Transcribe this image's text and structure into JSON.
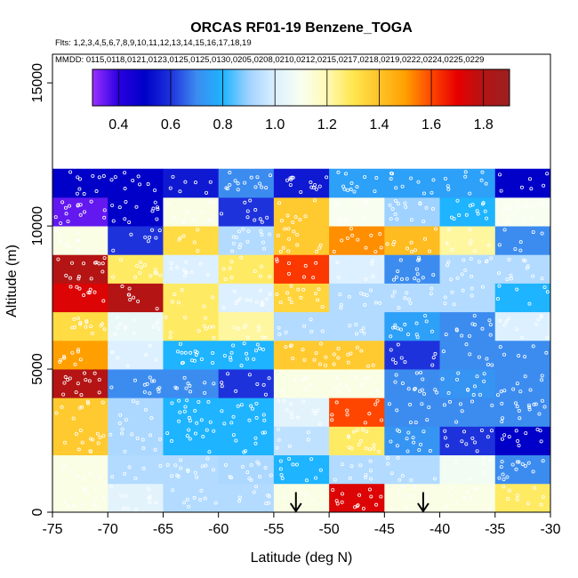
{
  "chart_data": {
    "type": "heatmap",
    "title": "ORCAS RF01-19 Benzene_TOGA",
    "flights_label": "Flts: 1,2,3,4,5,6,7,8,9,10,11,12,13,14,15,16,17,18,19",
    "dates_label": "MMDD: 0115,0118,0121,0123,0125,0125,0130,0205,0208,0210,0212,0215,0217,0218,0219,0222,0224,0225,0229",
    "xlabel": "Latitude (deg N)",
    "ylabel": "Altitude (m)",
    "xlim": [
      -75,
      -30
    ],
    "ylim": [
      0,
      16000
    ],
    "x_ticks": [
      -75,
      -70,
      -65,
      -60,
      -55,
      -50,
      -45,
      -40,
      -35,
      -30
    ],
    "y_ticks": [
      0,
      5000,
      10000,
      15000
    ],
    "x_bin_edges": [
      -75,
      -70,
      -65,
      -60,
      -55,
      -50,
      -45,
      -40,
      -35,
      -30
    ],
    "y_bin_edges": [
      0,
      1000,
      2000,
      3000,
      4000,
      5000,
      6000,
      7000,
      8000,
      9000,
      10000,
      11000,
      12000
    ],
    "colorbar": {
      "range": [
        0.3,
        1.9
      ],
      "ticks": [
        0.4,
        0.6,
        0.8,
        1.0,
        1.2,
        1.4,
        1.6,
        1.8
      ],
      "tick_labels": [
        "0.4",
        "0.6",
        "0.8",
        "1.0",
        "1.2",
        "1.4",
        "1.6",
        "1.8"
      ],
      "stops": [
        {
          "v": 0.3,
          "c": "#9b30ff"
        },
        {
          "v": 0.4,
          "c": "#2a00e0"
        },
        {
          "v": 0.5,
          "c": "#0000c8"
        },
        {
          "v": 0.6,
          "c": "#1e32dc"
        },
        {
          "v": 0.7,
          "c": "#3c8cf0"
        },
        {
          "v": 0.8,
          "c": "#1eb4ff"
        },
        {
          "v": 0.9,
          "c": "#a0d2ff"
        },
        {
          "v": 1.0,
          "c": "#dcf0ff"
        },
        {
          "v": 1.1,
          "c": "#f8fff0"
        },
        {
          "v": 1.2,
          "c": "#fffab4"
        },
        {
          "v": 1.3,
          "c": "#ffe650"
        },
        {
          "v": 1.4,
          "c": "#ffc328"
        },
        {
          "v": 1.5,
          "c": "#ffa000"
        },
        {
          "v": 1.6,
          "c": "#ff4600"
        },
        {
          "v": 1.7,
          "c": "#e60000"
        },
        {
          "v": 1.8,
          "c": "#b41414"
        },
        {
          "v": 1.9,
          "c": "#9b2020"
        }
      ]
    },
    "cells": [
      {
        "lat": -75,
        "alt": 0,
        "v": 1.12
      },
      {
        "lat": -70,
        "alt": 0,
        "v": 1.02
      },
      {
        "lat": -65,
        "alt": 0,
        "v": 0.93
      },
      {
        "lat": -60,
        "alt": 0,
        "v": 0.93
      },
      {
        "lat": -55,
        "alt": 0,
        "v": 1.12
      },
      {
        "lat": -50,
        "alt": 0,
        "v": 1.72
      },
      {
        "lat": -45,
        "alt": 0,
        "v": 1.12
      },
      {
        "lat": -40,
        "alt": 0,
        "v": 1.12
      },
      {
        "lat": -35,
        "alt": 0,
        "v": 1.28
      },
      {
        "lat": -75,
        "alt": 1000,
        "v": 1.12
      },
      {
        "lat": -70,
        "alt": 1000,
        "v": 0.93
      },
      {
        "lat": -65,
        "alt": 1000,
        "v": 0.93
      },
      {
        "lat": -60,
        "alt": 1000,
        "v": 0.92
      },
      {
        "lat": -55,
        "alt": 1000,
        "v": 0.8
      },
      {
        "lat": -50,
        "alt": 1000,
        "v": 0.93
      },
      {
        "lat": -45,
        "alt": 1000,
        "v": 0.93
      },
      {
        "lat": -40,
        "alt": 1000,
        "v": 1.08
      },
      {
        "lat": -35,
        "alt": 1000,
        "v": 0.7
      },
      {
        "lat": -75,
        "alt": 2000,
        "v": 1.38
      },
      {
        "lat": -70,
        "alt": 2000,
        "v": 0.92
      },
      {
        "lat": -65,
        "alt": 2000,
        "v": 0.8
      },
      {
        "lat": -60,
        "alt": 2000,
        "v": 0.8
      },
      {
        "lat": -55,
        "alt": 2000,
        "v": 0.95
      },
      {
        "lat": -50,
        "alt": 2000,
        "v": 1.28
      },
      {
        "lat": -45,
        "alt": 2000,
        "v": 0.72
      },
      {
        "lat": -40,
        "alt": 2000,
        "v": 0.6
      },
      {
        "lat": -35,
        "alt": 2000,
        "v": 0.5
      },
      {
        "lat": -75,
        "alt": 3000,
        "v": 1.38
      },
      {
        "lat": -70,
        "alt": 3000,
        "v": 0.92
      },
      {
        "lat": -65,
        "alt": 3000,
        "v": 0.8
      },
      {
        "lat": -60,
        "alt": 3000,
        "v": 0.8
      },
      {
        "lat": -55,
        "alt": 3000,
        "v": 1.02
      },
      {
        "lat": -50,
        "alt": 3000,
        "v": 1.6
      },
      {
        "lat": -45,
        "alt": 3000,
        "v": 0.7
      },
      {
        "lat": -40,
        "alt": 3000,
        "v": 0.7
      },
      {
        "lat": -35,
        "alt": 3000,
        "v": 0.7
      },
      {
        "lat": -75,
        "alt": 4000,
        "v": 1.8
      },
      {
        "lat": -70,
        "alt": 4000,
        "v": 0.7
      },
      {
        "lat": -65,
        "alt": 4000,
        "v": 0.7
      },
      {
        "lat": -60,
        "alt": 4000,
        "v": 0.6
      },
      {
        "lat": -55,
        "alt": 4000,
        "v": 1.12
      },
      {
        "lat": -50,
        "alt": 4000,
        "v": 1.12
      },
      {
        "lat": -45,
        "alt": 4000,
        "v": 0.7
      },
      {
        "lat": -40,
        "alt": 4000,
        "v": 0.72
      },
      {
        "lat": -35,
        "alt": 4000,
        "v": 0.7
      },
      {
        "lat": -75,
        "alt": 5000,
        "v": 1.5
      },
      {
        "lat": -70,
        "alt": 5000,
        "v": 1.0
      },
      {
        "lat": -65,
        "alt": 5000,
        "v": 0.8
      },
      {
        "lat": -60,
        "alt": 5000,
        "v": 0.8
      },
      {
        "lat": -55,
        "alt": 5000,
        "v": 1.38
      },
      {
        "lat": -50,
        "alt": 5000,
        "v": 1.38
      },
      {
        "lat": -45,
        "alt": 5000,
        "v": 0.6
      },
      {
        "lat": -40,
        "alt": 5000,
        "v": 0.7
      },
      {
        "lat": -35,
        "alt": 5000,
        "v": 0.7
      },
      {
        "lat": -75,
        "alt": 6000,
        "v": 1.33
      },
      {
        "lat": -70,
        "alt": 6000,
        "v": 1.05
      },
      {
        "lat": -65,
        "alt": 6000,
        "v": 1.28
      },
      {
        "lat": -60,
        "alt": 6000,
        "v": 1.22
      },
      {
        "lat": -55,
        "alt": 6000,
        "v": 0.93
      },
      {
        "lat": -50,
        "alt": 6000,
        "v": 0.93
      },
      {
        "lat": -45,
        "alt": 6000,
        "v": 0.75
      },
      {
        "lat": -40,
        "alt": 6000,
        "v": 0.7
      },
      {
        "lat": -35,
        "alt": 6000,
        "v": 1.0
      },
      {
        "lat": -75,
        "alt": 7000,
        "v": 1.72
      },
      {
        "lat": -70,
        "alt": 7000,
        "v": 1.8
      },
      {
        "lat": -65,
        "alt": 7000,
        "v": 1.28
      },
      {
        "lat": -60,
        "alt": 7000,
        "v": 1.0
      },
      {
        "lat": -55,
        "alt": 7000,
        "v": 1.35
      },
      {
        "lat": -50,
        "alt": 7000,
        "v": 0.93
      },
      {
        "lat": -45,
        "alt": 7000,
        "v": 0.93
      },
      {
        "lat": -40,
        "alt": 7000,
        "v": 0.93
      },
      {
        "lat": -35,
        "alt": 7000,
        "v": 0.8
      },
      {
        "lat": -75,
        "alt": 8000,
        "v": 1.8
      },
      {
        "lat": -70,
        "alt": 8000,
        "v": 1.28
      },
      {
        "lat": -65,
        "alt": 8000,
        "v": 1.0
      },
      {
        "lat": -60,
        "alt": 8000,
        "v": 1.28
      },
      {
        "lat": -55,
        "alt": 8000,
        "v": 1.62
      },
      {
        "lat": -50,
        "alt": 8000,
        "v": 1.0
      },
      {
        "lat": -45,
        "alt": 8000,
        "v": 0.7
      },
      {
        "lat": -40,
        "alt": 8000,
        "v": 0.93
      },
      {
        "lat": -35,
        "alt": 8000,
        "v": 0.93
      },
      {
        "lat": -75,
        "alt": 9000,
        "v": 1.12
      },
      {
        "lat": -70,
        "alt": 9000,
        "v": 0.6
      },
      {
        "lat": -65,
        "alt": 9000,
        "v": 1.33
      },
      {
        "lat": -60,
        "alt": 9000,
        "v": 0.93
      },
      {
        "lat": -55,
        "alt": 9000,
        "v": 1.38
      },
      {
        "lat": -50,
        "alt": 9000,
        "v": 1.52
      },
      {
        "lat": -45,
        "alt": 9000,
        "v": 1.42
      },
      {
        "lat": -40,
        "alt": 9000,
        "v": 1.22
      },
      {
        "lat": -35,
        "alt": 9000,
        "v": 0.7
      },
      {
        "lat": -75,
        "alt": 10000,
        "v": 0.35
      },
      {
        "lat": -70,
        "alt": 10000,
        "v": 0.5
      },
      {
        "lat": -65,
        "alt": 10000,
        "v": 1.12
      },
      {
        "lat": -60,
        "alt": 10000,
        "v": 0.6
      },
      {
        "lat": -55,
        "alt": 10000,
        "v": 1.38
      },
      {
        "lat": -50,
        "alt": 10000,
        "v": 1.1
      },
      {
        "lat": -45,
        "alt": 10000,
        "v": 0.9
      },
      {
        "lat": -40,
        "alt": 10000,
        "v": 0.8
      },
      {
        "lat": -35,
        "alt": 10000,
        "v": 1.1
      },
      {
        "lat": -75,
        "alt": 11000,
        "v": 0.5
      },
      {
        "lat": -70,
        "alt": 11000,
        "v": 0.5
      },
      {
        "lat": -65,
        "alt": 11000,
        "v": 0.55
      },
      {
        "lat": -60,
        "alt": 11000,
        "v": 0.7
      },
      {
        "lat": -55,
        "alt": 11000,
        "v": 0.55
      },
      {
        "lat": -50,
        "alt": 11000,
        "v": 0.75
      },
      {
        "lat": -45,
        "alt": 11000,
        "v": 0.75
      },
      {
        "lat": -40,
        "alt": 11000,
        "v": 0.75
      },
      {
        "lat": -35,
        "alt": 11000,
        "v": 0.5
      }
    ],
    "markers": [
      {
        "type": "arrow-down",
        "lat": -53.0,
        "alt_top": 700,
        "alt_bottom": 0
      },
      {
        "type": "arrow-down",
        "lat": -41.5,
        "alt_top": 700,
        "alt_bottom": 0
      }
    ]
  }
}
